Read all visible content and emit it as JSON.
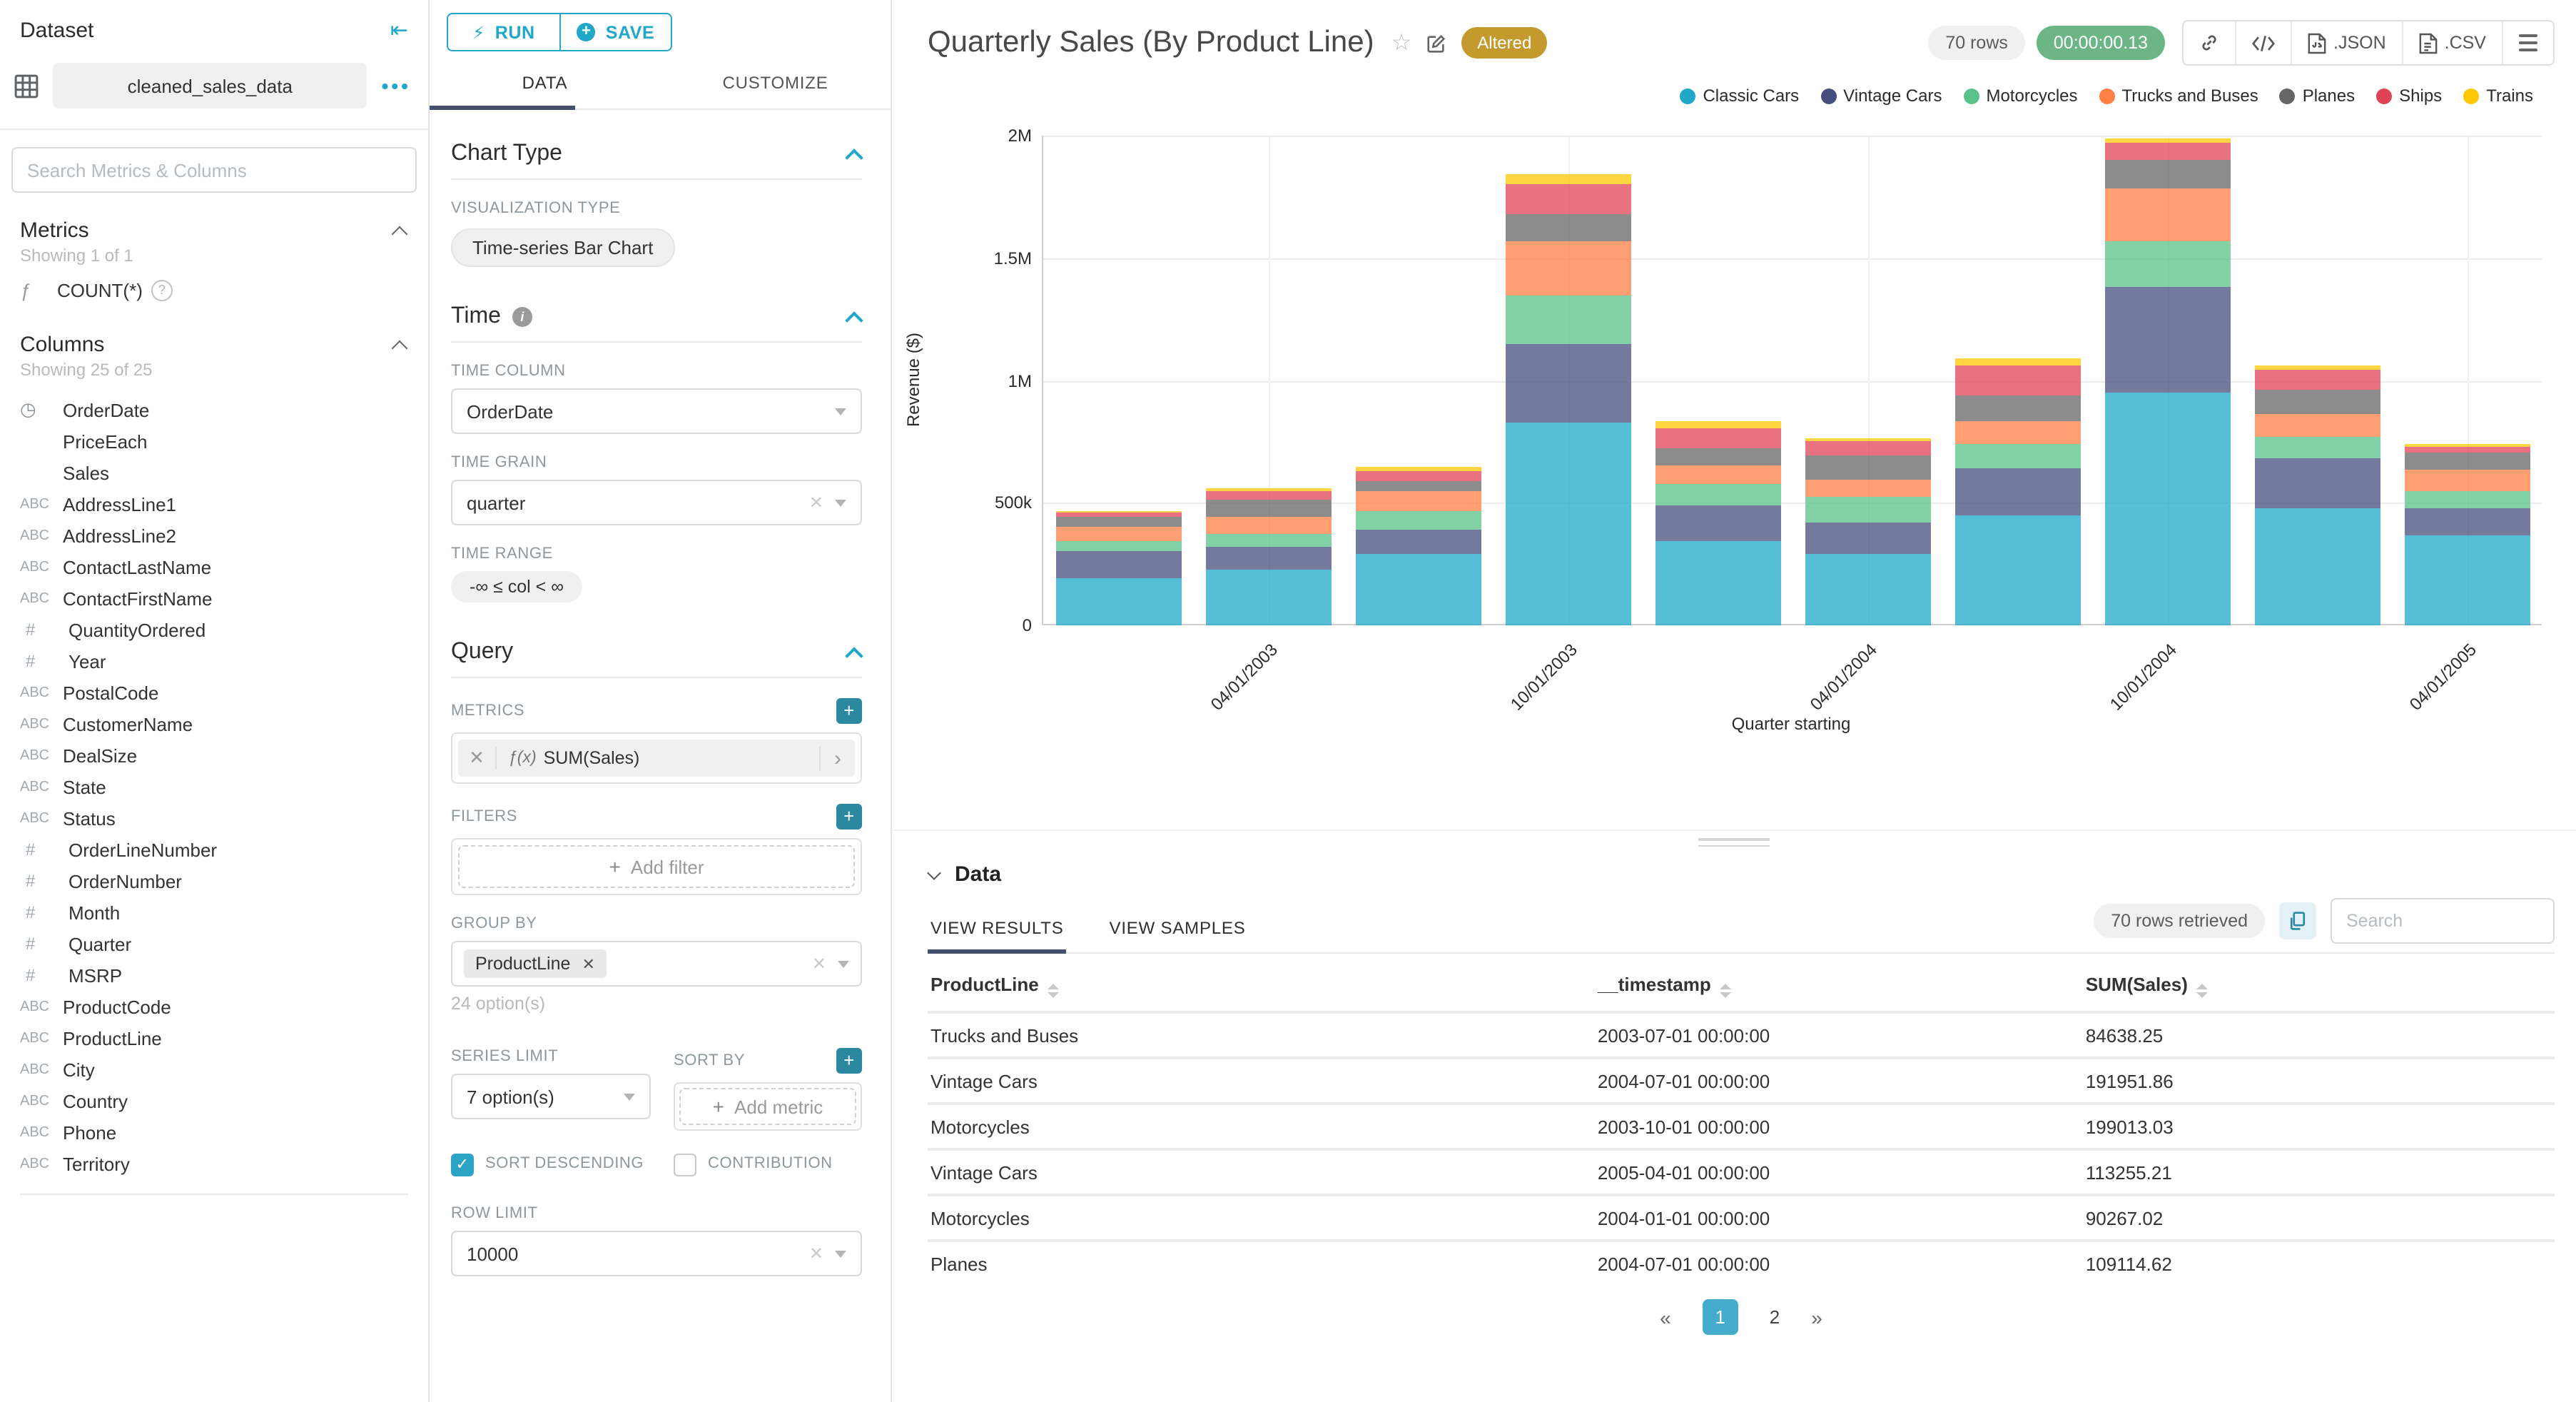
{
  "dataset_panel": {
    "title": "Dataset",
    "dataset_name": "cleaned_sales_data",
    "search_placeholder": "Search Metrics & Columns",
    "metrics": {
      "header": "Metrics",
      "showing": "Showing 1 of 1",
      "items": [
        {
          "icon": "function-icon",
          "label": "COUNT(*)"
        }
      ]
    },
    "columns": {
      "header": "Columns",
      "showing": "Showing 25 of 25",
      "items": [
        {
          "icon": "clock",
          "label": "OrderDate"
        },
        {
          "icon": "none",
          "label": "PriceEach"
        },
        {
          "icon": "none",
          "label": "Sales"
        },
        {
          "icon": "abc",
          "label": "AddressLine1"
        },
        {
          "icon": "abc",
          "label": "AddressLine2"
        },
        {
          "icon": "abc",
          "label": "ContactLastName"
        },
        {
          "icon": "abc",
          "label": "ContactFirstName"
        },
        {
          "icon": "hash",
          "label": "QuantityOrdered"
        },
        {
          "icon": "hash",
          "label": "Year"
        },
        {
          "icon": "abc",
          "label": "PostalCode"
        },
        {
          "icon": "abc",
          "label": "CustomerName"
        },
        {
          "icon": "abc",
          "label": "DealSize"
        },
        {
          "icon": "abc",
          "label": "State"
        },
        {
          "icon": "abc",
          "label": "Status"
        },
        {
          "icon": "hash",
          "label": "OrderLineNumber"
        },
        {
          "icon": "hash",
          "label": "OrderNumber"
        },
        {
          "icon": "hash",
          "label": "Month"
        },
        {
          "icon": "hash",
          "label": "Quarter"
        },
        {
          "icon": "hash",
          "label": "MSRP"
        },
        {
          "icon": "abc",
          "label": "ProductCode"
        },
        {
          "icon": "abc",
          "label": "ProductLine"
        },
        {
          "icon": "abc",
          "label": "City"
        },
        {
          "icon": "abc",
          "label": "Country"
        },
        {
          "icon": "abc",
          "label": "Phone"
        },
        {
          "icon": "abc",
          "label": "Territory"
        }
      ]
    }
  },
  "control_panel": {
    "run_label": "RUN",
    "save_label": "SAVE",
    "tabs": {
      "data": "DATA",
      "customize": "CUSTOMIZE"
    },
    "chart_type": {
      "header": "Chart Type",
      "viz_type_label": "VISUALIZATION TYPE",
      "viz_type_value": "Time-series Bar Chart"
    },
    "time": {
      "header": "Time",
      "time_column_label": "TIME COLUMN",
      "time_column_value": "OrderDate",
      "time_grain_label": "TIME GRAIN",
      "time_grain_value": "quarter",
      "time_range_label": "TIME RANGE",
      "time_range_value": "-∞ ≤ col < ∞"
    },
    "query": {
      "header": "Query",
      "metrics_label": "METRICS",
      "metric_fx": "ƒ(x)",
      "metric_value": "SUM(Sales)",
      "filters_label": "FILTERS",
      "add_filter": "Add filter",
      "group_by_label": "GROUP BY",
      "group_by_value": "ProductLine",
      "group_by_hint": "24 option(s)",
      "series_limit_label": "SERIES LIMIT",
      "series_limit_value": "7 option(s)",
      "sort_by_label": "SORT BY",
      "add_metric": "Add metric",
      "sort_descending_label": "SORT DESCENDING",
      "contribution_label": "CONTRIBUTION",
      "row_limit_label": "ROW LIMIT",
      "row_limit_value": "10000"
    }
  },
  "chart_header": {
    "title": "Quarterly Sales (By Product Line)",
    "altered_badge": "Altered",
    "rows_badge": "70 rows",
    "duration_badge": "00:00:00.13",
    "json_label": ".JSON",
    "csv_label": ".CSV"
  },
  "chart_data": {
    "type": "bar",
    "stacked": true,
    "xlabel": "Quarter starting",
    "ylabel": "Revenue ($)",
    "ylim": [
      0,
      2000000
    ],
    "grid": true,
    "legend_position": "top-right",
    "categories": [
      "2003-01-01",
      "2003-04-01",
      "2003-07-01",
      "2003-10-01",
      "2004-01-01",
      "2004-04-01",
      "2004-07-01",
      "2004-10-01",
      "2005-01-01",
      "2005-04-01"
    ],
    "x_tick_labels": [
      "04/01/2003",
      "10/01/2003",
      "04/01/2004",
      "10/01/2004",
      "04/01/2005"
    ],
    "x_tick_indices": [
      1,
      3,
      5,
      7,
      9
    ],
    "y_ticks": [
      {
        "label": "0",
        "value": 0
      },
      {
        "label": "500k",
        "value": 500000
      },
      {
        "label": "1M",
        "value": 1000000
      },
      {
        "label": "1.5M",
        "value": 1500000
      },
      {
        "label": "2M",
        "value": 2000000
      }
    ],
    "bar_opacity": 0.75,
    "series": [
      {
        "name": "Classic Cars",
        "color": "#1FA8C9",
        "values": [
          190000,
          225000,
          290000,
          830000,
          345000,
          290000,
          450000,
          950000,
          480000,
          365000
        ]
      },
      {
        "name": "Vintage Cars",
        "color": "#454E7C",
        "values": [
          115000,
          95000,
          100000,
          320000,
          145000,
          130000,
          191951.86,
          430000,
          205000,
          113255.21
        ]
      },
      {
        "name": "Motorcycles",
        "color": "#5AC189",
        "values": [
          38000,
          55000,
          75000,
          199013.03,
          90267.02,
          105000,
          100000,
          190000,
          85000,
          70000
        ]
      },
      {
        "name": "Trucks and Buses",
        "color": "#FF7F44",
        "values": [
          58000,
          70000,
          84638.25,
          220000,
          75000,
          70000,
          90000,
          215000,
          95000,
          90000
        ]
      },
      {
        "name": "Planes",
        "color": "#666666",
        "values": [
          45000,
          70000,
          38000,
          110000,
          70000,
          100000,
          109114.62,
          115000,
          95000,
          65000
        ]
      },
      {
        "name": "Ships",
        "color": "#E04355",
        "values": [
          14000,
          35000,
          45000,
          125000,
          80000,
          55000,
          120000,
          70000,
          85000,
          25000
        ]
      },
      {
        "name": "Trains",
        "color": "#FCC700",
        "values": [
          6000,
          12000,
          14000,
          40000,
          28000,
          15000,
          30000,
          20000,
          15000,
          12000
        ]
      }
    ]
  },
  "data_panel": {
    "header": "Data",
    "tabs": {
      "results": "VIEW RESULTS",
      "samples": "VIEW SAMPLES"
    },
    "rows_retrieved": "70 rows retrieved",
    "search_placeholder": "Search",
    "table": {
      "columns": [
        "ProductLine",
        "__timestamp",
        "SUM(Sales)"
      ],
      "rows": [
        [
          "Trucks and Buses",
          "2003-07-01 00:00:00",
          "84638.25"
        ],
        [
          "Vintage Cars",
          "2004-07-01 00:00:00",
          "191951.86"
        ],
        [
          "Motorcycles",
          "2003-10-01 00:00:00",
          "199013.03"
        ],
        [
          "Vintage Cars",
          "2005-04-01 00:00:00",
          "113255.21"
        ],
        [
          "Motorcycles",
          "2004-01-01 00:00:00",
          "90267.02"
        ],
        [
          "Planes",
          "2004-07-01 00:00:00",
          "109114.62"
        ]
      ]
    },
    "pagination": {
      "prev": "«",
      "pages": [
        "1",
        "2"
      ],
      "active": "1",
      "next": "»"
    }
  }
}
